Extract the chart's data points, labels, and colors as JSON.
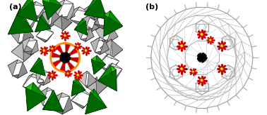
{
  "panel_a_label": "(a)",
  "panel_b_label": "(b)",
  "bg_color": "#ffffff",
  "green_color": "#22cc00",
  "green_dark": "#004400",
  "gray_face_light": "#e8e8e8",
  "gray_face_mid": "#b0b0b0",
  "gray_face_dark": "#606060",
  "gray_edge": "#222222",
  "red_color": "#cc0000",
  "orange_color": "#ff8800",
  "yellow_color": "#ffdd44",
  "black_color": "#000000",
  "white_poly_face": "#f0f0f0",
  "wire_color": "#999999",
  "wire_color2": "#bbbbbb",
  "cluster_spoke_lw": 2.2,
  "black_spoke_lw": 1.5,
  "n_black_spokes": 16
}
